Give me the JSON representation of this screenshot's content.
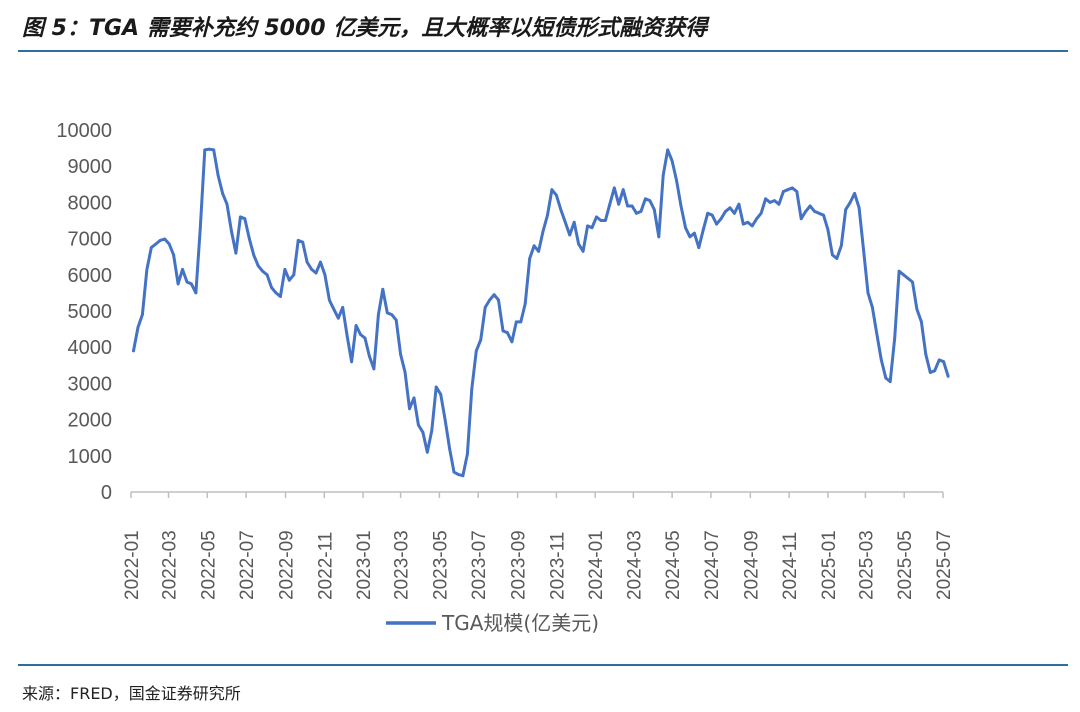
{
  "figure": {
    "title": "图 5：TGA 需要补充约 5000 亿美元，且大概率以短债形式融资获得",
    "source": "来源：FRED，国金证券研究所"
  },
  "colors": {
    "series": "#4472c4",
    "axis": "#bfbfbf",
    "text": "#595959",
    "rule": "#2f6f9f"
  },
  "chart_data": {
    "type": "line",
    "title": "",
    "xlabel": "",
    "ylabel": "",
    "ylim": [
      0,
      10000
    ],
    "yticks": [
      0,
      1000,
      2000,
      3000,
      4000,
      5000,
      6000,
      7000,
      8000,
      9000,
      10000
    ],
    "xticks": [
      "2022-01",
      "2022-03",
      "2022-05",
      "2022-07",
      "2022-09",
      "2022-11",
      "2023-01",
      "2023-03",
      "2023-05",
      "2023-07",
      "2023-09",
      "2023-11",
      "2024-01",
      "2024-03",
      "2024-05",
      "2024-07",
      "2024-09",
      "2024-11",
      "2025-01",
      "2025-03",
      "2025-05",
      "2025-07"
    ],
    "grid": false,
    "legend_position": "bottom",
    "series": [
      {
        "name": "TGA规模(亿美元)",
        "color": "#4472c4",
        "points": [
          [
            "2022-01-05",
            3900
          ],
          [
            "2022-01-12",
            4550
          ],
          [
            "2022-01-19",
            4900
          ],
          [
            "2022-01-26",
            6150
          ],
          [
            "2022-02-02",
            6750
          ],
          [
            "2022-02-09",
            6850
          ],
          [
            "2022-02-16",
            6950
          ],
          [
            "2022-02-23",
            6990
          ],
          [
            "2022-03-02",
            6850
          ],
          [
            "2022-03-09",
            6550
          ],
          [
            "2022-03-16",
            5750
          ],
          [
            "2022-03-23",
            6150
          ],
          [
            "2022-03-30",
            5800
          ],
          [
            "2022-04-06",
            5750
          ],
          [
            "2022-04-13",
            5500
          ],
          [
            "2022-04-20",
            7300
          ],
          [
            "2022-04-27",
            9450
          ],
          [
            "2022-05-04",
            9470
          ],
          [
            "2022-05-11",
            9450
          ],
          [
            "2022-05-18",
            8750
          ],
          [
            "2022-05-25",
            8250
          ],
          [
            "2022-06-01",
            7950
          ],
          [
            "2022-06-08",
            7200
          ],
          [
            "2022-06-15",
            6600
          ],
          [
            "2022-06-22",
            7600
          ],
          [
            "2022-06-29",
            7550
          ],
          [
            "2022-07-06",
            7000
          ],
          [
            "2022-07-13",
            6550
          ],
          [
            "2022-07-20",
            6250
          ],
          [
            "2022-07-27",
            6100
          ],
          [
            "2022-08-03",
            6000
          ],
          [
            "2022-08-10",
            5650
          ],
          [
            "2022-08-17",
            5500
          ],
          [
            "2022-08-24",
            5400
          ],
          [
            "2022-08-31",
            6150
          ],
          [
            "2022-09-07",
            5850
          ],
          [
            "2022-09-14",
            6000
          ],
          [
            "2022-09-21",
            6950
          ],
          [
            "2022-09-28",
            6900
          ],
          [
            "2022-10-05",
            6350
          ],
          [
            "2022-10-12",
            6150
          ],
          [
            "2022-10-19",
            6050
          ],
          [
            "2022-10-26",
            6350
          ],
          [
            "2022-11-02",
            6000
          ],
          [
            "2022-11-09",
            5300
          ],
          [
            "2022-11-16",
            5050
          ],
          [
            "2022-11-23",
            4800
          ],
          [
            "2022-11-30",
            5100
          ],
          [
            "2022-12-07",
            4300
          ],
          [
            "2022-12-14",
            3600
          ],
          [
            "2022-12-21",
            4600
          ],
          [
            "2022-12-28",
            4350
          ],
          [
            "2023-01-04",
            4250
          ],
          [
            "2023-01-11",
            3750
          ],
          [
            "2023-01-18",
            3400
          ],
          [
            "2023-01-25",
            4900
          ],
          [
            "2023-02-01",
            5600
          ],
          [
            "2023-02-08",
            4950
          ],
          [
            "2023-02-15",
            4900
          ],
          [
            "2023-02-22",
            4750
          ],
          [
            "2023-03-01",
            3800
          ],
          [
            "2023-03-08",
            3300
          ],
          [
            "2023-03-15",
            2300
          ],
          [
            "2023-03-22",
            2600
          ],
          [
            "2023-03-29",
            1850
          ],
          [
            "2023-04-05",
            1650
          ],
          [
            "2023-04-12",
            1100
          ],
          [
            "2023-04-19",
            1700
          ],
          [
            "2023-04-26",
            2900
          ],
          [
            "2023-05-03",
            2700
          ],
          [
            "2023-05-10",
            2000
          ],
          [
            "2023-05-17",
            1200
          ],
          [
            "2023-05-24",
            550
          ],
          [
            "2023-05-31",
            480
          ],
          [
            "2023-06-07",
            450
          ],
          [
            "2023-06-14",
            1050
          ],
          [
            "2023-06-21",
            2850
          ],
          [
            "2023-06-28",
            3900
          ],
          [
            "2023-07-05",
            4200
          ],
          [
            "2023-07-12",
            5100
          ],
          [
            "2023-07-19",
            5300
          ],
          [
            "2023-07-26",
            5450
          ],
          [
            "2023-08-02",
            5300
          ],
          [
            "2023-08-09",
            4450
          ],
          [
            "2023-08-16",
            4400
          ],
          [
            "2023-08-23",
            4150
          ],
          [
            "2023-08-30",
            4700
          ],
          [
            "2023-09-06",
            4700
          ],
          [
            "2023-09-13",
            5200
          ],
          [
            "2023-09-20",
            6450
          ],
          [
            "2023-09-27",
            6800
          ],
          [
            "2023-10-04",
            6650
          ],
          [
            "2023-10-11",
            7200
          ],
          [
            "2023-10-18",
            7650
          ],
          [
            "2023-10-25",
            8350
          ],
          [
            "2023-11-01",
            8200
          ],
          [
            "2023-11-08",
            7800
          ],
          [
            "2023-11-15",
            7450
          ],
          [
            "2023-11-22",
            7100
          ],
          [
            "2023-11-29",
            7450
          ],
          [
            "2023-12-06",
            6850
          ],
          [
            "2023-12-13",
            6650
          ],
          [
            "2023-12-20",
            7350
          ],
          [
            "2023-12-27",
            7300
          ],
          [
            "2024-01-03",
            7600
          ],
          [
            "2024-01-10",
            7500
          ],
          [
            "2024-01-17",
            7500
          ],
          [
            "2024-01-24",
            7950
          ],
          [
            "2024-01-31",
            8400
          ],
          [
            "2024-02-07",
            7950
          ],
          [
            "2024-02-14",
            8350
          ],
          [
            "2024-02-21",
            7900
          ],
          [
            "2024-02-28",
            7900
          ],
          [
            "2024-03-06",
            7700
          ],
          [
            "2024-03-13",
            7750
          ],
          [
            "2024-03-20",
            8100
          ],
          [
            "2024-03-27",
            8050
          ],
          [
            "2024-04-03",
            7800
          ],
          [
            "2024-04-10",
            7050
          ],
          [
            "2024-04-17",
            8750
          ],
          [
            "2024-04-24",
            9450
          ],
          [
            "2024-05-01",
            9150
          ],
          [
            "2024-05-08",
            8600
          ],
          [
            "2024-05-15",
            7900
          ],
          [
            "2024-05-22",
            7300
          ],
          [
            "2024-05-29",
            7050
          ],
          [
            "2024-06-05",
            7150
          ],
          [
            "2024-06-12",
            6750
          ],
          [
            "2024-06-19",
            7250
          ],
          [
            "2024-06-26",
            7700
          ],
          [
            "2024-07-03",
            7650
          ],
          [
            "2024-07-10",
            7400
          ],
          [
            "2024-07-17",
            7550
          ],
          [
            "2024-07-24",
            7750
          ],
          [
            "2024-07-31",
            7850
          ],
          [
            "2024-08-07",
            7700
          ],
          [
            "2024-08-14",
            7950
          ],
          [
            "2024-08-21",
            7400
          ],
          [
            "2024-08-28",
            7450
          ],
          [
            "2024-09-04",
            7350
          ],
          [
            "2024-09-11",
            7550
          ],
          [
            "2024-09-18",
            7700
          ],
          [
            "2024-09-25",
            8100
          ],
          [
            "2024-10-02",
            8000
          ],
          [
            "2024-10-09",
            8050
          ],
          [
            "2024-10-16",
            7950
          ],
          [
            "2024-10-23",
            8300
          ],
          [
            "2024-10-30",
            8350
          ],
          [
            "2024-11-06",
            8400
          ],
          [
            "2024-11-13",
            8300
          ],
          [
            "2024-11-20",
            7550
          ],
          [
            "2024-11-27",
            7750
          ],
          [
            "2024-12-04",
            7900
          ],
          [
            "2024-12-11",
            7750
          ],
          [
            "2024-12-18",
            7700
          ],
          [
            "2024-12-25",
            7650
          ],
          [
            "2025-01-01",
            7250
          ],
          [
            "2025-01-08",
            6550
          ],
          [
            "2025-01-15",
            6450
          ],
          [
            "2025-01-22",
            6800
          ],
          [
            "2025-01-29",
            7800
          ],
          [
            "2025-02-05",
            8000
          ],
          [
            "2025-02-12",
            8250
          ],
          [
            "2025-02-19",
            7850
          ],
          [
            "2025-02-26",
            6700
          ],
          [
            "2025-03-05",
            5500
          ],
          [
            "2025-03-12",
            5100
          ],
          [
            "2025-03-19",
            4350
          ],
          [
            "2025-03-26",
            3650
          ],
          [
            "2025-04-02",
            3150
          ],
          [
            "2025-04-09",
            3050
          ],
          [
            "2025-04-16",
            4250
          ],
          [
            "2025-04-23",
            6100
          ],
          [
            "2025-04-30",
            6000
          ],
          [
            "2025-05-07",
            5900
          ],
          [
            "2025-05-14",
            5800
          ],
          [
            "2025-05-21",
            5050
          ],
          [
            "2025-05-28",
            4700
          ],
          [
            "2025-06-04",
            3800
          ],
          [
            "2025-06-11",
            3300
          ],
          [
            "2025-06-18",
            3350
          ],
          [
            "2025-06-25",
            3650
          ],
          [
            "2025-07-02",
            3600
          ],
          [
            "2025-07-09",
            3200
          ]
        ]
      }
    ]
  }
}
